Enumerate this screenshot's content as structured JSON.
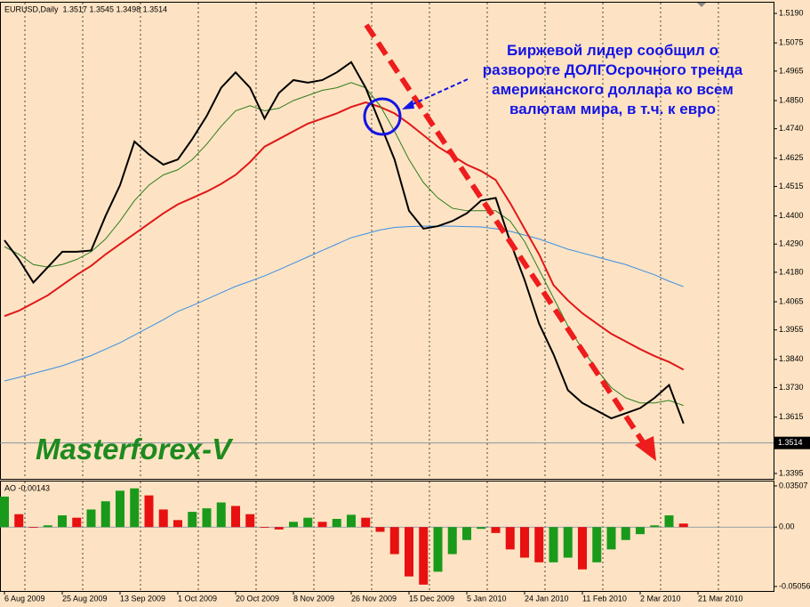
{
  "chart_data": [
    {
      "type": "line",
      "title": "EURUSD,Daily  1.3517 1.3545 1.3498 1.3514",
      "annotation": "Биржевой лидер сообщил о развороте ДОЛГОсрочного тренда американского доллара ко всем валютам мира, в т.ч. к евро",
      "watermark": "Masterforex-V",
      "categories": [
        "6 Aug 2009",
        null,
        null,
        null,
        "25 Aug 2009",
        null,
        null,
        null,
        "13 Sep 2009",
        null,
        null,
        null,
        "1 Oct 2009",
        null,
        null,
        null,
        "20 Oct 2009",
        null,
        null,
        null,
        "8 Nov 2009",
        null,
        null,
        null,
        "26 Nov 2009",
        null,
        null,
        null,
        "15 Dec 2009",
        null,
        null,
        null,
        "5 Jan 2010",
        null,
        null,
        null,
        "24 Jan 2010",
        null,
        null,
        null,
        "11 Feb 2010",
        null,
        null,
        null,
        "2 Mar 2010",
        null,
        null,
        null,
        "21 Mar 2010",
        null,
        null,
        null,
        null
      ],
      "series": [
        {
          "color": "#3a8ee6",
          "width": 1,
          "values": [
            1.3756,
            1.377,
            1.3785,
            1.38,
            1.3815,
            1.3835,
            1.3855,
            1.388,
            1.3905,
            1.3935,
            1.3965,
            1.3995,
            1.4027,
            1.405,
            1.4075,
            1.41,
            1.4125,
            1.4145,
            1.4166,
            1.419,
            1.4215,
            1.424,
            1.4265,
            1.429,
            1.4315,
            1.433,
            1.4345,
            1.4355,
            1.4358,
            1.436,
            1.436,
            1.436,
            1.4358,
            1.4357,
            1.435,
            1.434,
            1.4325,
            1.431,
            1.429,
            1.427,
            1.4255,
            1.424,
            1.4225,
            1.421,
            1.419,
            1.417,
            1.4145,
            1.4124,
            null,
            null,
            null,
            null,
            null
          ]
        },
        {
          "color": "#e01818",
          "width": 2,
          "values": [
            1.4009,
            1.403,
            1.406,
            1.409,
            1.413,
            1.417,
            1.4205,
            1.425,
            1.429,
            1.433,
            1.437,
            1.441,
            1.4445,
            1.447,
            1.4495,
            1.4525,
            1.456,
            1.461,
            1.467,
            1.47,
            1.473,
            1.476,
            1.478,
            1.48,
            1.4825,
            1.4843,
            1.4825,
            1.48,
            1.476,
            1.4715,
            1.467,
            1.4635,
            1.46,
            1.4575,
            1.454,
            1.445,
            1.435,
            1.425,
            1.413,
            1.407,
            1.402,
            1.398,
            1.394,
            1.391,
            1.388,
            1.3853,
            1.383,
            1.38,
            null,
            null,
            null,
            null,
            null
          ]
        },
        {
          "color": "#2e7d1e",
          "width": 1,
          "values": [
            1.428,
            1.425,
            1.421,
            1.42,
            1.421,
            1.423,
            1.426,
            1.431,
            1.438,
            1.446,
            1.452,
            1.456,
            1.458,
            1.462,
            1.468,
            1.475,
            1.481,
            1.483,
            1.481,
            1.482,
            1.485,
            1.487,
            1.489,
            1.49,
            1.492,
            1.49,
            1.483,
            1.473,
            1.462,
            1.453,
            1.447,
            1.443,
            1.442,
            1.442,
            1.442,
            1.438,
            1.43,
            1.419,
            1.408,
            1.397,
            1.388,
            1.38,
            1.373,
            1.369,
            1.367,
            1.367,
            1.368,
            1.366,
            null,
            null,
            null,
            null,
            null
          ]
        },
        {
          "color": "#000000",
          "width": 2,
          "values": [
            1.4305,
            1.423,
            1.414,
            1.42,
            1.426,
            1.426,
            1.4265,
            1.44,
            1.452,
            1.469,
            1.464,
            1.46,
            1.462,
            1.47,
            1.479,
            1.49,
            1.496,
            1.49,
            1.478,
            1.488,
            1.493,
            1.492,
            1.493,
            1.496,
            1.5,
            1.49,
            1.476,
            1.462,
            1.442,
            1.435,
            1.436,
            1.438,
            1.441,
            1.446,
            1.447,
            1.43,
            1.415,
            1.398,
            1.386,
            1.372,
            1.367,
            1.364,
            1.361,
            1.363,
            1.365,
            1.369,
            1.374,
            1.359,
            null,
            null,
            null,
            null,
            null
          ]
        }
      ],
      "ylim": [
        1.3374,
        1.5232
      ],
      "yticks": [
        {
          "value": 1.519,
          "label": "1.5190"
        },
        1.5075,
        1.4965,
        {
          "value": 1.485,
          "label": "1.4850"
        },
        {
          "value": 1.474,
          "label": "1.4740"
        },
        1.4625,
        1.4515,
        {
          "value": 1.44,
          "label": "1.4400"
        },
        {
          "value": 1.429,
          "label": "1.4290"
        },
        {
          "value": 1.418,
          "label": "1.4180"
        },
        1.4065,
        1.3955,
        {
          "value": 1.384,
          "label": "1.3840"
        },
        {
          "value": 1.373,
          "label": "1.3730"
        },
        1.3615,
        1.3395
      ],
      "last_price": 1.3514,
      "grid": true
    },
    {
      "type": "bar",
      "title": "AO -0.00143",
      "up_color": "#1a9a1a",
      "down_color": "#e81010",
      "values": [
        0.026,
        0.011,
        0,
        0.0015,
        0.01,
        0.008,
        0.015,
        0.022,
        0.031,
        0.033,
        0.027,
        0.015,
        0.006,
        0.013,
        0.016,
        0.021,
        0.018,
        0.011,
        0,
        -0.002,
        0.0045,
        0.008,
        0.0045,
        0.007,
        0.0105,
        0.008,
        -0.004,
        -0.023,
        -0.042,
        -0.049,
        -0.038,
        -0.023,
        -0.011,
        -0.0015,
        -0.005,
        -0.019,
        -0.026,
        -0.03,
        -0.03,
        -0.026,
        -0.036,
        -0.03,
        -0.019,
        -0.011,
        -0.006,
        0.0015,
        0.01,
        0.003,
        null,
        null,
        null,
        null,
        null
      ],
      "ylim": [
        -0.0544,
        0.0396
      ],
      "yticks": [
        0.03507,
        {
          "value": 0,
          "label": "0.00"
        },
        -0.05056
      ]
    }
  ]
}
